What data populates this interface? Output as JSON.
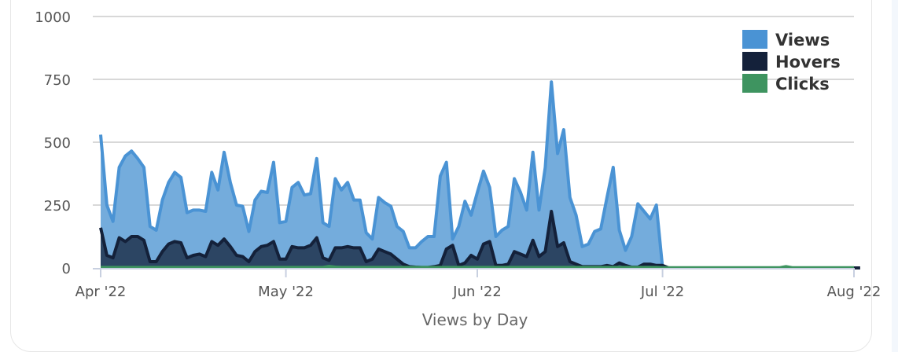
{
  "chart_data": {
    "type": "area",
    "title": "Views by Day",
    "xlabel": "Views by Day",
    "ylabel": "",
    "ylim": [
      0,
      1000
    ],
    "yticks": [
      "0",
      "250",
      "500",
      "750",
      "1000"
    ],
    "ytick_values": [
      0,
      250,
      500,
      750,
      1000
    ],
    "xticks": [
      "Apr '22",
      "May '22",
      "Jun '22",
      "Jul '22",
      "Aug '22"
    ],
    "xtick_days": [
      0,
      30,
      61,
      91,
      122
    ],
    "start_date": "2022-04-01",
    "grid": true,
    "legend_position": "top-right",
    "colors": {
      "Views": "#4a93d4",
      "Hovers": "#14213a",
      "Clicks": "#3e9460"
    },
    "series": [
      {
        "name": "Views",
        "values": [
          530,
          250,
          185,
          400,
          445,
          465,
          435,
          400,
          165,
          150,
          270,
          340,
          380,
          360,
          220,
          230,
          230,
          225,
          380,
          310,
          460,
          340,
          250,
          245,
          145,
          270,
          305,
          300,
          420,
          180,
          185,
          320,
          340,
          290,
          295,
          435,
          180,
          165,
          355,
          310,
          340,
          270,
          270,
          140,
          115,
          280,
          260,
          245,
          165,
          145,
          80,
          80,
          105,
          125,
          125,
          365,
          420,
          115,
          165,
          265,
          210,
          300,
          385,
          320,
          125,
          150,
          165,
          355,
          300,
          230,
          460,
          230,
          400,
          740,
          455,
          550,
          280,
          210,
          85,
          95,
          145,
          155,
          280,
          400,
          150,
          70,
          125,
          255,
          225,
          195,
          250,
          0,
          0,
          0,
          0,
          0,
          0,
          0,
          0,
          0,
          0,
          0,
          0,
          0,
          0,
          0,
          0,
          0,
          0,
          0,
          0,
          0,
          0,
          0,
          0,
          0,
          0,
          0,
          0,
          0,
          0,
          0,
          0
        ]
      },
      {
        "name": "Hovers",
        "values": [
          160,
          50,
          40,
          120,
          105,
          125,
          125,
          110,
          25,
          25,
          65,
          95,
          105,
          100,
          40,
          50,
          55,
          45,
          105,
          90,
          115,
          85,
          50,
          45,
          25,
          65,
          85,
          90,
          105,
          35,
          35,
          85,
          80,
          80,
          90,
          120,
          40,
          30,
          80,
          80,
          85,
          80,
          80,
          25,
          35,
          75,
          65,
          55,
          35,
          15,
          5,
          3,
          2,
          2,
          5,
          10,
          75,
          90,
          10,
          20,
          50,
          35,
          95,
          105,
          10,
          10,
          15,
          65,
          55,
          45,
          110,
          45,
          65,
          225,
          85,
          100,
          25,
          15,
          5,
          5,
          5,
          5,
          10,
          5,
          20,
          10,
          3,
          3,
          15,
          15,
          10,
          10,
          0,
          0,
          0,
          0,
          0,
          0,
          0,
          0,
          0,
          0,
          0,
          0,
          0,
          0,
          0,
          0,
          0,
          0,
          0,
          0,
          0,
          0,
          0,
          0,
          0,
          0,
          0,
          0,
          0,
          0,
          0,
          0
        ]
      },
      {
        "name": "Clicks",
        "values": [
          2,
          2,
          2,
          2,
          2,
          2,
          2,
          2,
          2,
          2,
          2,
          2,
          2,
          2,
          2,
          2,
          2,
          2,
          2,
          2,
          2,
          2,
          2,
          2,
          2,
          2,
          2,
          2,
          2,
          2,
          2,
          2,
          2,
          2,
          2,
          2,
          2,
          6,
          3,
          2,
          2,
          2,
          2,
          2,
          2,
          2,
          2,
          2,
          2,
          2,
          2,
          2,
          2,
          2,
          2,
          2,
          2,
          2,
          2,
          2,
          2,
          2,
          2,
          2,
          2,
          2,
          2,
          2,
          2,
          2,
          2,
          2,
          2,
          2,
          2,
          2,
          2,
          2,
          2,
          2,
          2,
          2,
          2,
          2,
          2,
          2,
          2,
          2,
          2,
          2,
          2,
          1,
          1,
          1,
          1,
          1,
          1,
          1,
          1,
          1,
          1,
          1,
          1,
          1,
          1,
          1,
          1,
          1,
          1,
          1,
          1,
          5,
          1,
          1,
          1,
          1,
          1,
          1,
          1,
          1,
          1,
          1,
          1
        ]
      }
    ]
  }
}
